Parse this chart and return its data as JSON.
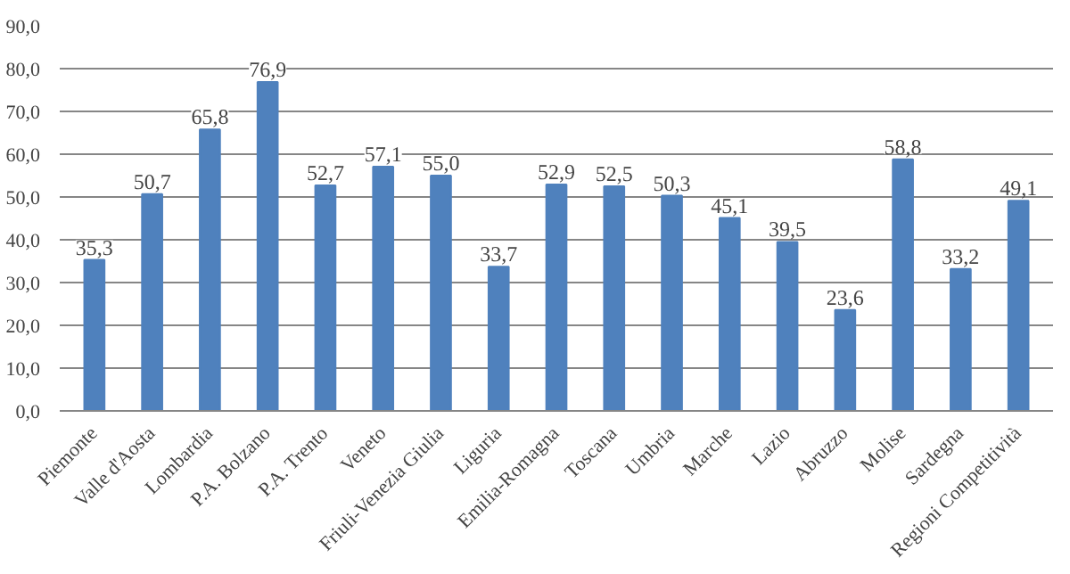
{
  "chart_data": {
    "type": "bar",
    "categories": [
      "Piemonte",
      "Valle d'Aosta",
      "Lombardia",
      "P.A. Bolzano",
      "P.A. Trento",
      "Veneto",
      "Friuli-Venezia Giulia",
      "Liguria",
      "Emilia-Romagna",
      "Toscana",
      "Umbria",
      "Marche",
      "Lazio",
      "Abruzzo",
      "Molise",
      "Sardegna",
      "Regioni Competitività"
    ],
    "values": [
      35.3,
      50.7,
      65.8,
      76.9,
      52.7,
      57.1,
      55.0,
      33.7,
      52.9,
      52.5,
      50.3,
      45.1,
      39.5,
      23.6,
      58.8,
      33.2,
      49.1
    ],
    "value_labels": [
      "35,3",
      "50,7",
      "65,8",
      "76,9",
      "52,7",
      "57,1",
      "55,0",
      "33,7",
      "52,9",
      "52,5",
      "50,3",
      "45,1",
      "39,5",
      "23,6",
      "58,8",
      "33,2",
      "49,1"
    ],
    "color": "#4f81bd",
    "ylim": [
      0,
      90
    ],
    "yticks": [
      {
        "value": 0,
        "label": "0,0"
      },
      {
        "value": 10,
        "label": "10,0"
      },
      {
        "value": 20,
        "label": "20,0"
      },
      {
        "value": 30,
        "label": "30,0"
      },
      {
        "value": 40,
        "label": "40,0"
      },
      {
        "value": 50,
        "label": "50,0"
      },
      {
        "value": 60,
        "label": "60,0"
      },
      {
        "value": 70,
        "label": "70,0"
      },
      {
        "value": 80,
        "label": "80,0"
      },
      {
        "value": 90,
        "label": "90,0"
      }
    ],
    "grid": "y"
  }
}
